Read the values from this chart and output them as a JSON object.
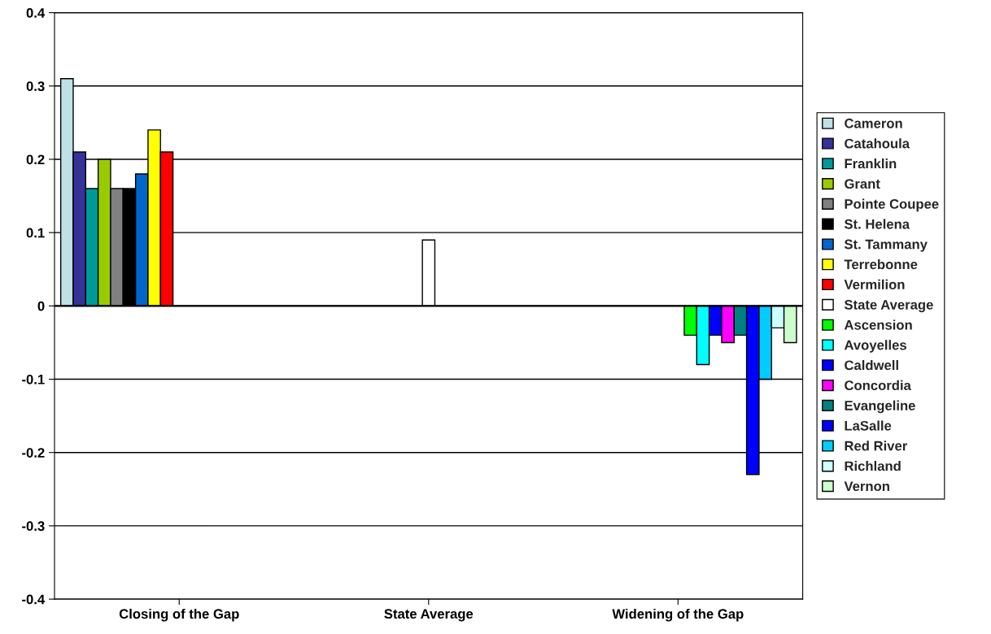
{
  "chart_data": {
    "type": "bar",
    "categories": [
      "Closing of the Gap",
      "State Average",
      "Widening of the Gap"
    ],
    "ylim": [
      -0.4,
      0.4
    ],
    "yticks": [
      -0.4,
      -0.3,
      -0.2,
      -0.1,
      0,
      0.1,
      0.2,
      0.3,
      0.4
    ],
    "grid": "y",
    "legend": "right",
    "series": [
      {
        "name": "Cameron",
        "color": "#bfe0e4",
        "values": [
          0.31,
          null,
          null
        ]
      },
      {
        "name": "Catahoula",
        "color": "#333399",
        "values": [
          0.21,
          null,
          null
        ]
      },
      {
        "name": "Franklin",
        "color": "#009999",
        "values": [
          0.16,
          null,
          null
        ]
      },
      {
        "name": "Grant",
        "color": "#99cc00",
        "values": [
          0.2,
          null,
          null
        ]
      },
      {
        "name": "Pointe Coupee",
        "color": "#808080",
        "values": [
          0.16,
          null,
          null
        ]
      },
      {
        "name": "St. Helena",
        "color": "#000000",
        "values": [
          0.16,
          null,
          null
        ]
      },
      {
        "name": "St. Tammany",
        "color": "#0066cc",
        "values": [
          0.18,
          null,
          null
        ]
      },
      {
        "name": "Terrebonne",
        "color": "#ffff00",
        "values": [
          0.24,
          null,
          null
        ]
      },
      {
        "name": "Vermilion",
        "color": "#ff0000",
        "values": [
          0.21,
          null,
          null
        ]
      },
      {
        "name": "State Average",
        "color": "#ffffff",
        "values": [
          null,
          0.09,
          null
        ]
      },
      {
        "name": "Ascension",
        "color": "#00ff00",
        "values": [
          null,
          null,
          -0.04
        ]
      },
      {
        "name": "Avoyelles",
        "color": "#00ffff",
        "values": [
          null,
          null,
          -0.08
        ]
      },
      {
        "name": "Caldwell",
        "color": "#0000ff",
        "values": [
          null,
          null,
          -0.04
        ]
      },
      {
        "name": "Concordia",
        "color": "#ff00ff",
        "values": [
          null,
          null,
          -0.05
        ]
      },
      {
        "name": "Evangeline",
        "color": "#008080",
        "values": [
          null,
          null,
          -0.04
        ]
      },
      {
        "name": "LaSalle",
        "color": "#0000ff",
        "values": [
          null,
          null,
          -0.23
        ]
      },
      {
        "name": "Red River",
        "color": "#00ccff",
        "values": [
          null,
          null,
          -0.1
        ]
      },
      {
        "name": "Richland",
        "color": "#ccffff",
        "values": [
          null,
          null,
          -0.03
        ]
      },
      {
        "name": "Vernon",
        "color": "#ccffcc",
        "values": [
          null,
          null,
          -0.05
        ]
      }
    ]
  }
}
